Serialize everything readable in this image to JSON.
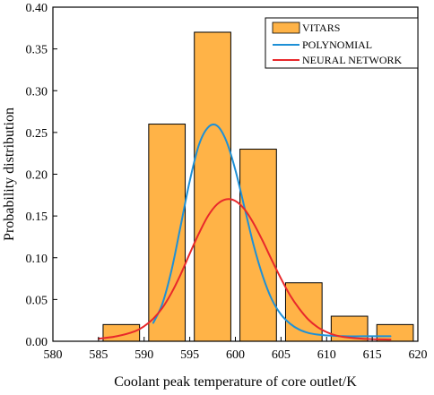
{
  "chart_data": {
    "type": "bar",
    "title": "",
    "xlabel": "Coolant peak temperature of core outlet/K",
    "ylabel": "Probability distribution",
    "xlim": [
      580,
      620
    ],
    "ylim": [
      0,
      0.4
    ],
    "xticks": [
      "580",
      "585",
      "590",
      "595",
      "600",
      "605",
      "610",
      "615",
      "620"
    ],
    "yticks": [
      "0.00",
      "0.05",
      "0.10",
      "0.15",
      "0.20",
      "0.25",
      "0.30",
      "0.35",
      "0.40"
    ],
    "grid": false,
    "legend_position": "top-right",
    "bars": {
      "name": "VITARS",
      "color": "#FFB347",
      "edge_color": "#000000",
      "bins": [
        {
          "x0": 585.5,
          "x1": 589.5,
          "value": 0.02
        },
        {
          "x0": 590.5,
          "x1": 594.5,
          "value": 0.26
        },
        {
          "x0": 595.5,
          "x1": 599.5,
          "value": 0.37
        },
        {
          "x0": 600.5,
          "x1": 604.5,
          "value": 0.23
        },
        {
          "x0": 605.5,
          "x1": 609.5,
          "value": 0.07
        },
        {
          "x0": 610.5,
          "x1": 614.5,
          "value": 0.03
        },
        {
          "x0": 615.5,
          "x1": 619.5,
          "value": 0.02
        }
      ]
    },
    "series": [
      {
        "name": "POLYNOMIAL",
        "type": "line",
        "color": "#1E90D6",
        "x": [
          591,
          592,
          593,
          594,
          595,
          596,
          597,
          598,
          599,
          600,
          601,
          602,
          603,
          604,
          605,
          606,
          607,
          608,
          609,
          610,
          612,
          614,
          617
        ],
        "y": [
          0.022,
          0.045,
          0.085,
          0.138,
          0.192,
          0.235,
          0.256,
          0.258,
          0.24,
          0.205,
          0.16,
          0.115,
          0.078,
          0.05,
          0.032,
          0.021,
          0.014,
          0.01,
          0.008,
          0.007,
          0.006,
          0.006,
          0.006
        ]
      },
      {
        "name": "NEURAL NETWORK",
        "type": "line",
        "color": "#E8282B",
        "x": [
          585,
          587,
          589,
          590,
          591,
          592,
          593,
          594,
          595,
          596,
          597,
          598,
          599,
          600,
          601,
          602,
          603,
          604,
          605,
          606,
          607,
          608,
          609,
          610,
          611,
          612,
          614,
          617
        ],
        "y": [
          0.003,
          0.006,
          0.012,
          0.018,
          0.027,
          0.04,
          0.058,
          0.08,
          0.105,
          0.129,
          0.15,
          0.164,
          0.17,
          0.168,
          0.158,
          0.141,
          0.12,
          0.097,
          0.075,
          0.055,
          0.039,
          0.026,
          0.017,
          0.011,
          0.007,
          0.005,
          0.003,
          0.002
        ]
      }
    ]
  }
}
